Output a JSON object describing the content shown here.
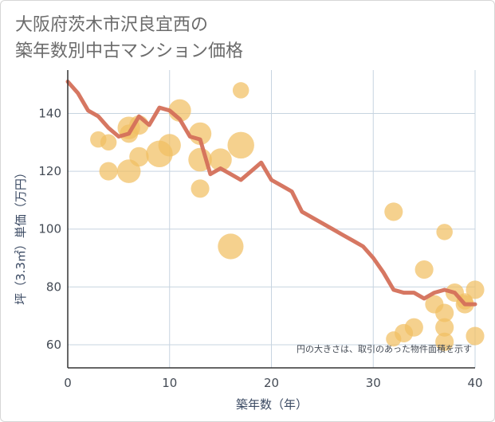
{
  "header": {
    "title_line1": "大阪府茨木市沢良宜西の",
    "title_line2": "築年数別中古マンション価格"
  },
  "chart_data": {
    "type": "scatter",
    "title": "大阪府茨木市沢良宜西の築年数別中古マンション価格",
    "xlabel": "築年数（年）",
    "ylabel": "坪（3.3㎡）単価（万円）",
    "xlim": [
      0,
      40
    ],
    "ylim": [
      52,
      155
    ],
    "xticks": [
      0,
      10,
      20,
      30,
      40
    ],
    "yticks": [
      60,
      80,
      100,
      120,
      140
    ],
    "grid": true,
    "note": "円の大きさは、取引のあった物件面積を示す",
    "colors": {
      "bubble": "#f1bf62",
      "line": "#d4705a",
      "grid": "#c7d4e0",
      "axis": "#333333"
    },
    "series": [
      {
        "type": "bubble",
        "points": [
          {
            "x": 3,
            "y": 131,
            "size": 0.25
          },
          {
            "x": 4,
            "y": 130,
            "size": 0.25
          },
          {
            "x": 4,
            "y": 120,
            "size": 0.35
          },
          {
            "x": 6,
            "y": 135,
            "size": 0.55
          },
          {
            "x": 6,
            "y": 133,
            "size": 0.35
          },
          {
            "x": 6,
            "y": 120,
            "size": 0.6
          },
          {
            "x": 7,
            "y": 136,
            "size": 0.4
          },
          {
            "x": 7,
            "y": 125,
            "size": 0.4
          },
          {
            "x": 9,
            "y": 126,
            "size": 0.75
          },
          {
            "x": 10,
            "y": 129,
            "size": 0.55
          },
          {
            "x": 11,
            "y": 141,
            "size": 0.55
          },
          {
            "x": 13,
            "y": 133,
            "size": 0.55
          },
          {
            "x": 13,
            "y": 124,
            "size": 0.6
          },
          {
            "x": 13,
            "y": 114,
            "size": 0.35
          },
          {
            "x": 15,
            "y": 124,
            "size": 0.55
          },
          {
            "x": 16,
            "y": 94,
            "size": 0.7
          },
          {
            "x": 17,
            "y": 148,
            "size": 0.25
          },
          {
            "x": 17,
            "y": 129,
            "size": 0.75
          },
          {
            "x": 32,
            "y": 106,
            "size": 0.35
          },
          {
            "x": 32,
            "y": 62,
            "size": 0.2
          },
          {
            "x": 33,
            "y": 64,
            "size": 0.35
          },
          {
            "x": 34,
            "y": 66,
            "size": 0.35
          },
          {
            "x": 35,
            "y": 86,
            "size": 0.35
          },
          {
            "x": 36,
            "y": 74,
            "size": 0.35
          },
          {
            "x": 37,
            "y": 99,
            "size": 0.25
          },
          {
            "x": 37,
            "y": 71,
            "size": 0.35
          },
          {
            "x": 37,
            "y": 66,
            "size": 0.35
          },
          {
            "x": 37,
            "y": 61,
            "size": 0.35
          },
          {
            "x": 38,
            "y": 78,
            "size": 0.35
          },
          {
            "x": 39,
            "y": 74,
            "size": 0.35
          },
          {
            "x": 39,
            "y": 75,
            "size": 0.25
          },
          {
            "x": 40,
            "y": 79,
            "size": 0.35
          },
          {
            "x": 40,
            "y": 63,
            "size": 0.35
          }
        ]
      },
      {
        "type": "line",
        "x": [
          0,
          1,
          2,
          3,
          4,
          5,
          6,
          7,
          8,
          9,
          10,
          11,
          12,
          13,
          14,
          15,
          16,
          17,
          18,
          19,
          20,
          21,
          22,
          23,
          24,
          25,
          26,
          27,
          28,
          29,
          30,
          31,
          32,
          33,
          34,
          35,
          36,
          37,
          38,
          39,
          40
        ],
        "y": [
          151,
          147,
          141,
          139,
          135,
          132,
          133,
          139,
          136,
          142,
          141,
          138,
          132,
          131,
          119,
          121,
          119,
          117,
          120,
          123,
          117,
          115,
          113,
          106,
          104,
          102,
          100,
          98,
          96,
          94,
          90,
          85,
          79,
          78,
          78,
          76,
          78,
          79,
          78,
          74,
          74
        ]
      }
    ]
  }
}
